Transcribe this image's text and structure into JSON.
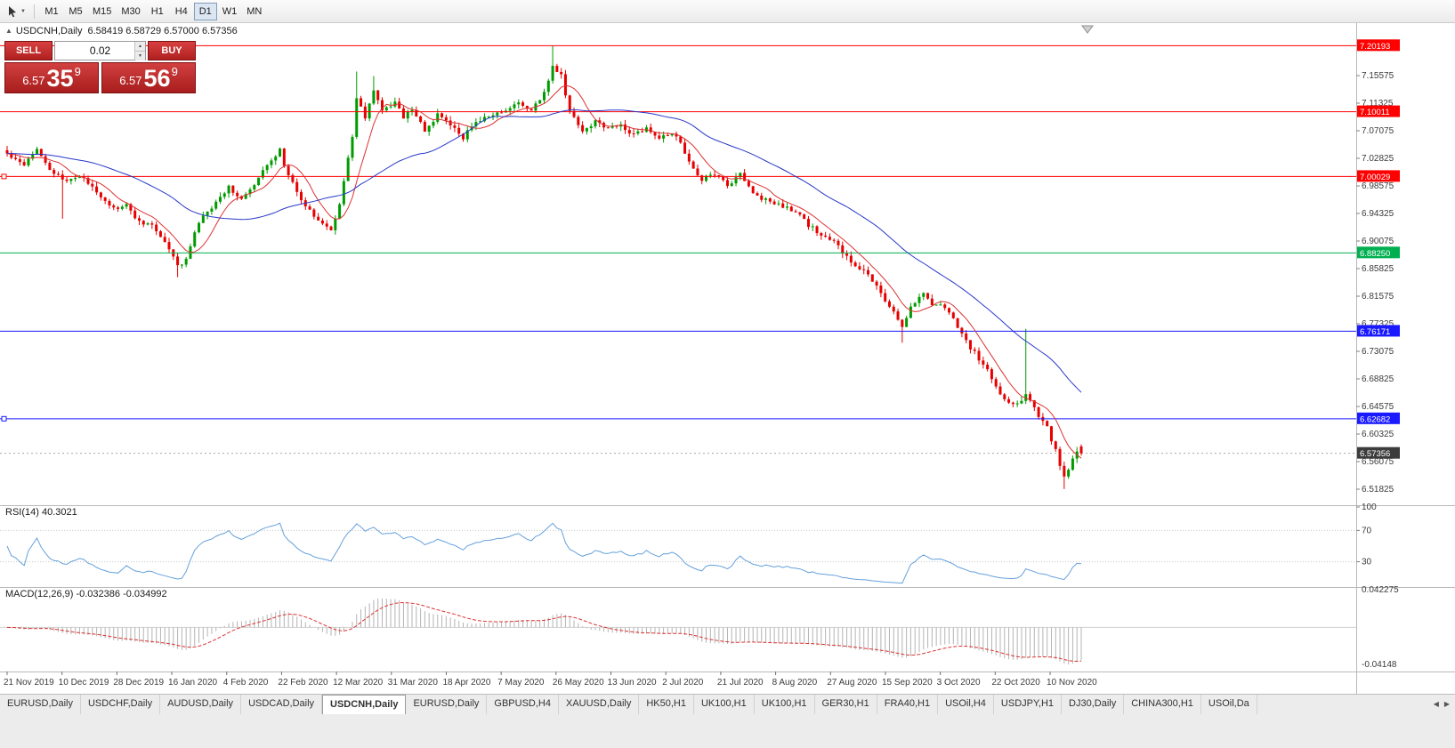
{
  "toolbar": {
    "timeframes": [
      "M1",
      "M5",
      "M15",
      "M30",
      "H1",
      "H4",
      "D1",
      "W1",
      "MN"
    ],
    "active": "D1"
  },
  "icons": {
    "one_click_toggle": "▲",
    "tool_caret": "▼",
    "spin_up": "▲",
    "spin_down": "▼",
    "tab_scroll_left": "◀",
    "tab_scroll_right": "▶"
  },
  "legend": {
    "symbol": "USDCNH,Daily",
    "ohlc": "6.58419 6.58729 6.57000 6.57356"
  },
  "trade_panel": {
    "sell_label": "SELL",
    "buy_label": "BUY",
    "volume": "0.02",
    "sell_price": {
      "base": "6.57",
      "big": "35",
      "sup": "9"
    },
    "buy_price": {
      "base": "6.57",
      "big": "56",
      "sup": "9"
    }
  },
  "panels": {
    "rsi_label": "RSI(14) 40.3021",
    "macd_label": "MACD(12,26,9) -0.032386 -0.034992"
  },
  "chart_data": {
    "type": "candlestick",
    "symbol": "USDCNH",
    "timeframe": "Daily",
    "current": {
      "open": 6.58419,
      "high": 6.58729,
      "low": 6.57,
      "close": 6.57356
    },
    "current_price": 6.57356,
    "price_range": [
      6.4936,
      7.2147
    ],
    "price_ticks": [
      7.15575,
      7.11325,
      7.07075,
      7.02825,
      6.98575,
      6.94325,
      6.90075,
      6.85825,
      6.81575,
      6.77325,
      6.73075,
      6.68825,
      6.64575,
      6.60325,
      6.56075,
      6.51825
    ],
    "hlines": [
      {
        "price": 7.20193,
        "color": "#ff0000"
      },
      {
        "price": 7.10011,
        "color": "#ff0000"
      },
      {
        "price": 7.00029,
        "color": "#ff0000",
        "handle": true
      },
      {
        "price": 6.8825,
        "color": "#00b050"
      },
      {
        "price": 6.76171,
        "color": "#1a1aff"
      },
      {
        "price": 6.62682,
        "color": "#1a1aff",
        "handle": true
      }
    ],
    "candles": 253,
    "close_anchors": [
      [
        0,
        7.035
      ],
      [
        4,
        7.02
      ],
      [
        7,
        7.045
      ],
      [
        10,
        7.01
      ],
      [
        13,
        6.995
      ],
      [
        17,
        7.0
      ],
      [
        20,
        6.985
      ],
      [
        25,
        6.95
      ],
      [
        28,
        6.955
      ],
      [
        31,
        6.93
      ],
      [
        34,
        6.925
      ],
      [
        37,
        6.9
      ],
      [
        40,
        6.862
      ],
      [
        42,
        6.873
      ],
      [
        45,
        6.93
      ],
      [
        49,
        6.96
      ],
      [
        52,
        6.985
      ],
      [
        55,
        6.965
      ],
      [
        58,
        6.985
      ],
      [
        61,
        7.02
      ],
      [
        64,
        7.04
      ],
      [
        66,
        7.0
      ],
      [
        70,
        6.955
      ],
      [
        73,
        6.935
      ],
      [
        76,
        6.915
      ],
      [
        78,
        6.96
      ],
      [
        81,
        7.06
      ],
      [
        82,
        7.12
      ],
      [
        84,
        7.09
      ],
      [
        86,
        7.135
      ],
      [
        88,
        7.1
      ],
      [
        91,
        7.115
      ],
      [
        93,
        7.09
      ],
      [
        95,
        7.105
      ],
      [
        98,
        7.07
      ],
      [
        101,
        7.095
      ],
      [
        104,
        7.08
      ],
      [
        107,
        7.06
      ],
      [
        110,
        7.085
      ],
      [
        114,
        7.095
      ],
      [
        117,
        7.1
      ],
      [
        120,
        7.115
      ],
      [
        123,
        7.1
      ],
      [
        126,
        7.13
      ],
      [
        128,
        7.17
      ],
      [
        130,
        7.155
      ],
      [
        132,
        7.1
      ],
      [
        135,
        7.07
      ],
      [
        138,
        7.085
      ],
      [
        141,
        7.075
      ],
      [
        144,
        7.08
      ],
      [
        147,
        7.065
      ],
      [
        150,
        7.075
      ],
      [
        153,
        7.06
      ],
      [
        157,
        7.065
      ],
      [
        160,
        7.02
      ],
      [
        163,
        6.995
      ],
      [
        166,
        7.005
      ],
      [
        169,
        6.985
      ],
      [
        172,
        7.005
      ],
      [
        175,
        6.975
      ],
      [
        179,
        6.96
      ],
      [
        182,
        6.955
      ],
      [
        185,
        6.945
      ],
      [
        188,
        6.925
      ],
      [
        191,
        6.91
      ],
      [
        194,
        6.9
      ],
      [
        197,
        6.875
      ],
      [
        201,
        6.855
      ],
      [
        204,
        6.83
      ],
      [
        207,
        6.8
      ],
      [
        210,
        6.77
      ],
      [
        212,
        6.8
      ],
      [
        215,
        6.82
      ],
      [
        217,
        6.805
      ],
      [
        220,
        6.8
      ],
      [
        223,
        6.77
      ],
      [
        225,
        6.745
      ],
      [
        228,
        6.72
      ],
      [
        231,
        6.69
      ],
      [
        233,
        6.665
      ],
      [
        236,
        6.648
      ],
      [
        238,
        6.655
      ],
      [
        239,
        6.668
      ],
      [
        242,
        6.63
      ],
      [
        244,
        6.612
      ],
      [
        246,
        6.578
      ],
      [
        248,
        6.535
      ],
      [
        249,
        6.548
      ],
      [
        251,
        6.576
      ],
      [
        252,
        6.57356
      ]
    ],
    "wick_overrides": [
      {
        "i": 13,
        "low": 6.935
      },
      {
        "i": 40,
        "low": 6.845
      },
      {
        "i": 82,
        "high": 7.162
      },
      {
        "i": 86,
        "high": 7.155
      },
      {
        "i": 128,
        "high": 7.2019
      },
      {
        "i": 210,
        "low": 6.744
      },
      {
        "i": 239,
        "high": 6.7655
      },
      {
        "i": 248,
        "low": 6.5185
      }
    ],
    "x_labels": [
      "21 Nov 2019",
      "10 Dec 2019",
      "28 Dec 2019",
      "16 Jan 2020",
      "4 Feb 2020",
      "22 Feb 2020",
      "12 Mar 2020",
      "31 Mar 2020",
      "18 Apr 2020",
      "7 May 2020",
      "26 May 2020",
      "13 Jun 2020",
      "2 Jul 2020",
      "21 Jul 2020",
      "8 Aug 2020",
      "27 Aug 2020",
      "15 Sep 2020",
      "3 Oct 2020",
      "22 Oct 2020",
      "10 Nov 2020"
    ],
    "ma": {
      "fast_period": 8,
      "slow_period": 34
    },
    "rsi": {
      "period": 14,
      "last": 40.3021,
      "levels": [
        70,
        30
      ],
      "axis_labels": [
        "100",
        "70",
        "30"
      ]
    },
    "macd": {
      "fast": 12,
      "slow": 26,
      "signal": 9,
      "main": -0.032386,
      "signal_value": -0.034992,
      "axis_top": 0.042275,
      "axis_bottom": -0.04148
    },
    "colors": {
      "up": "#009b00",
      "down": "#e60000",
      "ma_fast": "#dc3232",
      "ma_slow": "#2838c8",
      "rsi_line": "#64a0dc",
      "macd_hist": "#b4b4b4",
      "macd_signal": "#dc3232",
      "current_badge": "#3c3c3c"
    }
  },
  "tabbar": {
    "tabs": [
      "EURUSD,Daily",
      "USDCHF,Daily",
      "AUDUSD,Daily",
      "USDCAD,Daily",
      "USDCNH,Daily",
      "EURUSD,Daily",
      "GBPUSD,H4",
      "XAUUSD,Daily",
      "HK50,H1",
      "UK100,H1",
      "UK100,H1",
      "GER30,H1",
      "FRA40,H1",
      "USOil,H4",
      "USDJPY,H1",
      "DJ30,Daily",
      "CHINA300,H1",
      "USOil,Da"
    ],
    "active_index": 4
  }
}
